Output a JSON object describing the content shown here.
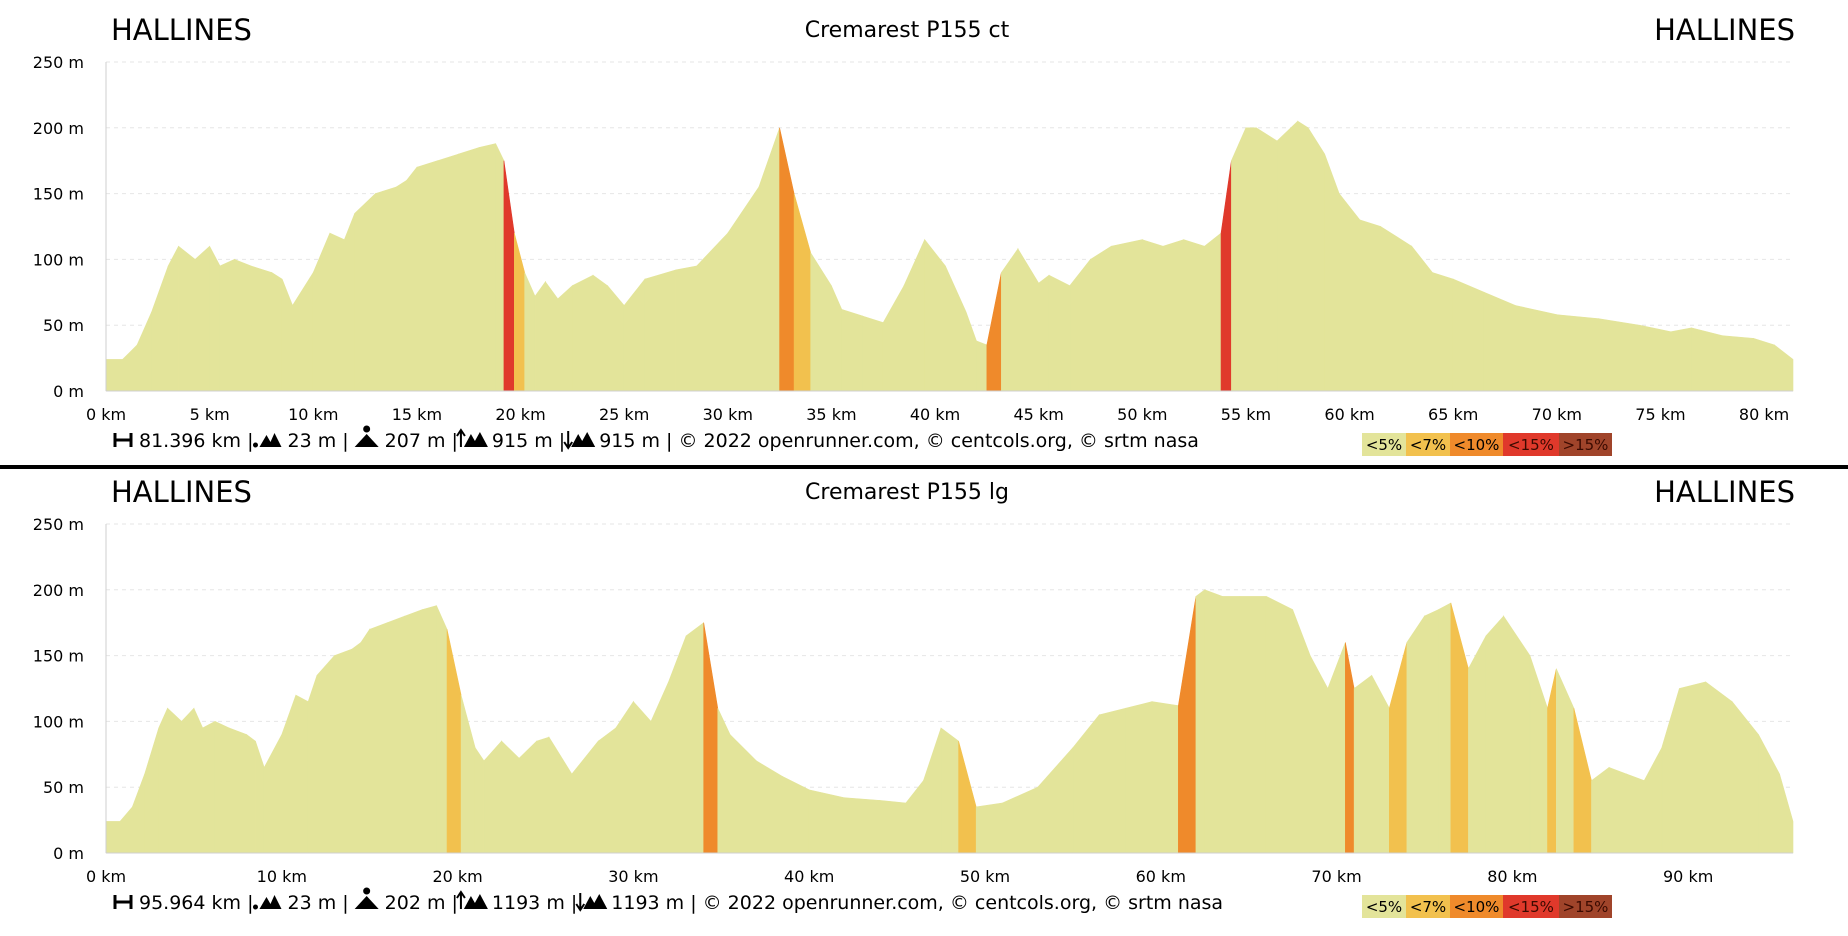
{
  "chart_data": [
    {
      "type": "area",
      "title": "Cremarest P155 ct",
      "start_label": "HALLINES",
      "end_label": "HALLINES",
      "y_unit": "m",
      "x_unit": "km",
      "ylim": [
        0,
        250
      ],
      "xlim": [
        0,
        81.396
      ],
      "yticks": [
        0,
        50,
        100,
        150,
        200,
        250
      ],
      "xticks": [
        0,
        5,
        10,
        15,
        20,
        25,
        30,
        35,
        40,
        45,
        50,
        55,
        60,
        65,
        70,
        75,
        80
      ],
      "ytick_labels": [
        "0 m",
        "50 m",
        "100 m",
        "150 m",
        "200 m",
        "250 m"
      ],
      "xtick_labels": [
        "0 km",
        "5 km",
        "10 km",
        "15 km",
        "20 km",
        "25 km",
        "30 km",
        "35 km",
        "40 km",
        "45 km",
        "50 km",
        "55 km",
        "60 km",
        "65 km",
        "70 km",
        "75 km",
        "80 km"
      ],
      "grid": true,
      "x": [
        0,
        0.8,
        1.5,
        2.2,
        3,
        3.5,
        4.3,
        5,
        5.5,
        6.2,
        7,
        8,
        8.5,
        9,
        10,
        10.8,
        11.5,
        12,
        13,
        14,
        14.5,
        15,
        16,
        17,
        18,
        18.8,
        19.2,
        19.7,
        20.2,
        20.7,
        21.2,
        21.8,
        22.5,
        23.5,
        24.2,
        25,
        26,
        27.5,
        28.5,
        30,
        31.5,
        32.5,
        33.2,
        34,
        35,
        35.5,
        36.5,
        37.5,
        38.5,
        39.5,
        40.5,
        41.5,
        42,
        42.5,
        43.2,
        44,
        45,
        45.5,
        46.5,
        47.5,
        48.5,
        50,
        51,
        52,
        53,
        53.8,
        54.3,
        55,
        55.5,
        56.5,
        57.5,
        58,
        58.8,
        59.5,
        60.5,
        61.5,
        63,
        64,
        65,
        66.5,
        68,
        70,
        72,
        74,
        75.5,
        76.5,
        78,
        79.5,
        80.5,
        81.396
      ],
      "elevation": [
        24,
        24,
        35,
        60,
        95,
        110,
        100,
        110,
        95,
        100,
        95,
        90,
        85,
        65,
        90,
        120,
        115,
        135,
        150,
        155,
        160,
        170,
        175,
        180,
        185,
        188,
        175,
        120,
        90,
        72,
        83,
        70,
        80,
        88,
        80,
        65,
        85,
        92,
        95,
        120,
        155,
        200,
        150,
        105,
        80,
        62,
        57,
        52,
        80,
        115,
        95,
        60,
        38,
        35,
        90,
        108,
        82,
        88,
        80,
        100,
        110,
        115,
        110,
        115,
        110,
        120,
        175,
        200,
        200,
        190,
        205,
        200,
        180,
        150,
        130,
        125,
        110,
        90,
        85,
        75,
        65,
        58,
        55,
        50,
        45,
        48,
        42,
        40,
        35,
        24
      ],
      "grade_legend": [
        "<5%",
        "<7%",
        "<10%",
        "<15%",
        ">15%"
      ],
      "grade_colors": [
        "#e3e49a",
        "#f2c14e",
        "#ef8a2b",
        "#e0392b",
        "#a0442a"
      ],
      "stats": {
        "distance": "81.396 km",
        "min_altitude": "23 m",
        "max_altitude": "207 m",
        "ascent": "915 m",
        "descent": "915 m",
        "credits": "© 2022 openrunner.com, © centcols.org, © srtm nasa"
      }
    },
    {
      "type": "area",
      "title": "Cremarest P155 lg",
      "start_label": "HALLINES",
      "end_label": "HALLINES",
      "y_unit": "m",
      "x_unit": "km",
      "ylim": [
        0,
        250
      ],
      "xlim": [
        0,
        95.964
      ],
      "yticks": [
        0,
        50,
        100,
        150,
        200,
        250
      ],
      "xticks": [
        0,
        10,
        20,
        30,
        40,
        50,
        60,
        70,
        80,
        90
      ],
      "ytick_labels": [
        "0 m",
        "50 m",
        "100 m",
        "150 m",
        "200 m",
        "250 m"
      ],
      "xtick_labels": [
        "0 km",
        "10 km",
        "20 km",
        "30 km",
        "40 km",
        "50 km",
        "60 km",
        "70 km",
        "80 km",
        "90 km"
      ],
      "grid": true,
      "x": [
        0,
        0.8,
        1.5,
        2.2,
        3,
        3.5,
        4.3,
        5,
        5.5,
        6.2,
        7,
        8,
        8.5,
        9,
        10,
        10.8,
        11.5,
        12,
        13,
        14,
        14.5,
        15,
        16,
        17,
        18,
        18.8,
        19.4,
        20.2,
        21,
        21.5,
        22.5,
        23.5,
        24.5,
        25.2,
        26.5,
        28,
        29,
        30,
        31,
        32,
        33,
        34,
        34.8,
        35.5,
        37,
        38.5,
        40,
        42,
        44,
        45.5,
        46.5,
        47.5,
        48.5,
        49.5,
        51,
        53,
        55,
        56.5,
        58,
        59.5,
        61,
        62,
        62.5,
        63.5,
        64.5,
        66,
        67.5,
        68.5,
        69.5,
        70.5,
        71,
        72,
        73,
        74,
        75,
        75.8,
        76.5,
        77.5,
        78.5,
        79.5,
        81,
        82,
        82.5,
        83.5,
        84.5,
        85.5,
        86.5,
        87.5,
        88.5,
        89.5,
        91,
        92.5,
        94,
        95.2,
        95.964
      ],
      "elevation": [
        24,
        24,
        35,
        60,
        95,
        110,
        100,
        110,
        95,
        100,
        95,
        90,
        85,
        65,
        90,
        120,
        115,
        135,
        150,
        155,
        160,
        170,
        175,
        180,
        185,
        188,
        170,
        120,
        80,
        70,
        85,
        72,
        85,
        88,
        60,
        85,
        95,
        115,
        100,
        130,
        165,
        175,
        110,
        90,
        70,
        58,
        48,
        42,
        40,
        38,
        55,
        95,
        85,
        35,
        38,
        50,
        80,
        105,
        110,
        115,
        112,
        195,
        200,
        195,
        195,
        195,
        185,
        150,
        125,
        160,
        125,
        135,
        110,
        160,
        180,
        185,
        190,
        140,
        165,
        180,
        150,
        110,
        140,
        110,
        55,
        65,
        60,
        55,
        80,
        125,
        130,
        115,
        90,
        60,
        24
      ],
      "grade_legend": [
        "<5%",
        "<7%",
        "<10%",
        "<15%",
        ">15%"
      ],
      "grade_colors": [
        "#e3e49a",
        "#f2c14e",
        "#ef8a2b",
        "#e0392b",
        "#a0442a"
      ],
      "stats": {
        "distance": "95.964 km",
        "min_altitude": "23 m",
        "max_altitude": "202 m",
        "ascent": "1193 m",
        "descent": "1193 m",
        "credits": "© 2022 openrunner.com, © centcols.org, © srtm nasa"
      }
    }
  ]
}
